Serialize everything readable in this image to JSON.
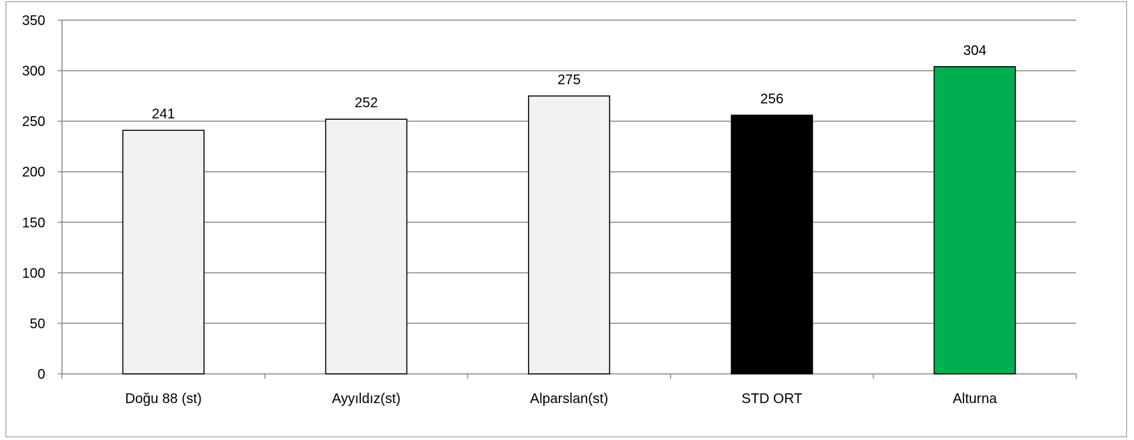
{
  "chart_data": {
    "type": "bar",
    "title": "",
    "xlabel": "",
    "ylabel": "",
    "categories": [
      "Doğu 88 (st)",
      "Ayyıldız(st)",
      "Alparslan(st)",
      "STD ORT",
      "Alturna"
    ],
    "values": [
      241,
      252,
      275,
      256,
      304
    ],
    "bar_colors": [
      "#f2f2f2",
      "#f2f2f2",
      "#f2f2f2",
      "#000000",
      "#00b050"
    ],
    "ylim": [
      0,
      350
    ],
    "yticks": [
      0,
      50,
      100,
      150,
      200,
      250,
      300,
      350
    ],
    "grid": true,
    "legend": "none",
    "data_labels": true
  }
}
